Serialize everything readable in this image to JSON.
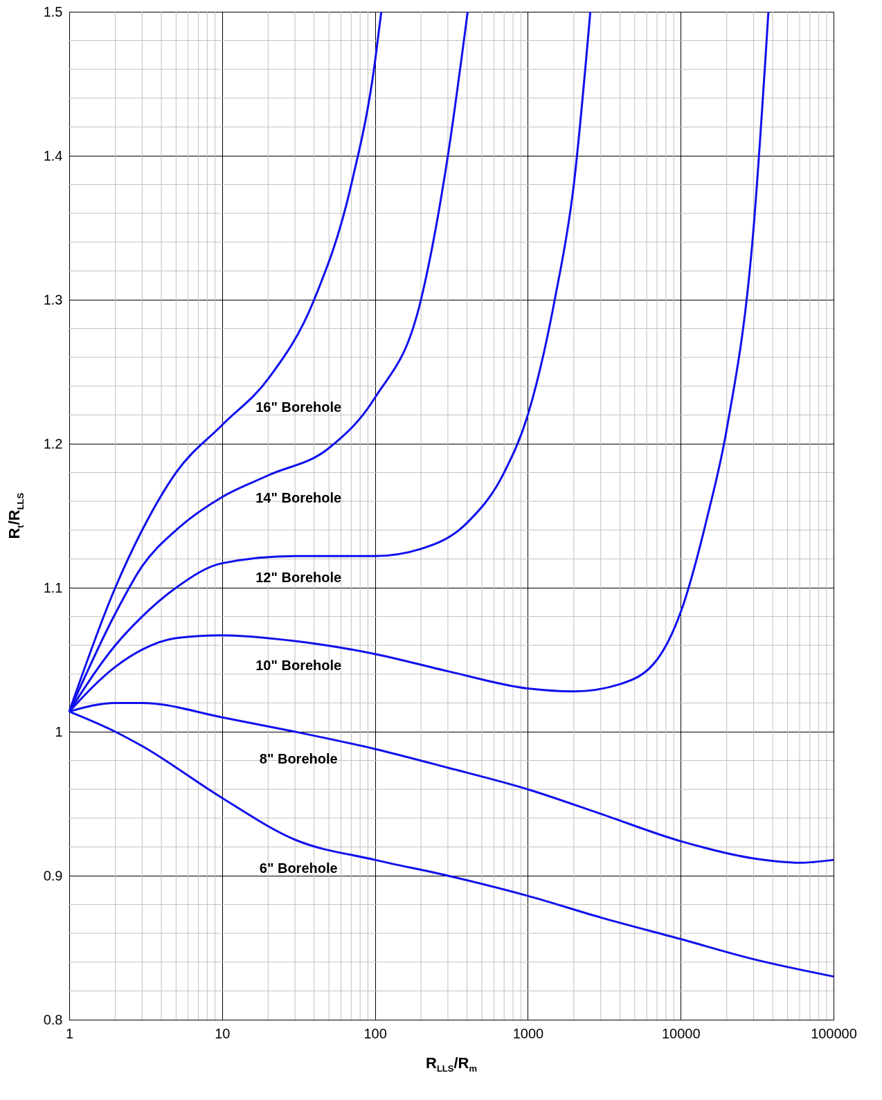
{
  "chart_data": {
    "type": "line",
    "xlabel": "R$_{LLS}$/R$_{m}$",
    "ylabel": "R$_{t}$/R$_{LLS}$",
    "log": "x",
    "grid": true,
    "marker": "none",
    "line_style": "solid",
    "xlim": [
      1,
      100000
    ],
    "xticks": [
      1,
      10,
      100,
      1000,
      10000,
      100000
    ],
    "ylim": [
      0.8,
      1.5
    ],
    "yticks": [
      0.8,
      0.9,
      1,
      1.1,
      1.2,
      1.3,
      1.4,
      1.5
    ],
    "series": [
      {
        "name": "16\" Borehole",
        "color": "#1010ee",
        "x": [
          1,
          2,
          3,
          5,
          10,
          20,
          40,
          70,
          100,
          110
        ],
        "values": [
          1.014,
          1.1,
          1.14,
          1.18,
          1.213,
          1.245,
          1.3,
          1.38,
          1.465,
          1.5
        ]
      },
      {
        "name": "14\" Borehole",
        "color": "#1010ee",
        "x": [
          1,
          2,
          3,
          5,
          10,
          20,
          50,
          100,
          200,
          300,
          404
        ],
        "values": [
          1.014,
          1.082,
          1.115,
          1.14,
          1.163,
          1.178,
          1.197,
          1.232,
          1.3,
          1.4,
          1.5
        ]
      },
      {
        "name": "12\" Borehole",
        "color": "#1010ee",
        "x": [
          1,
          2,
          3,
          5,
          10,
          30,
          100,
          200,
          400,
          700,
          1000,
          1500,
          2000,
          2564
        ],
        "values": [
          1.014,
          1.06,
          1.08,
          1.1,
          1.117,
          1.122,
          1.122,
          1.127,
          1.145,
          1.18,
          1.22,
          1.3,
          1.38,
          1.5
        ]
      },
      {
        "name": "10\" Borehole",
        "color": "#1010ee",
        "x": [
          1,
          2,
          3,
          5,
          10,
          30,
          100,
          300,
          1000,
          2000,
          4000,
          7000,
          10000,
          15000,
          20000,
          30000,
          37500
        ],
        "values": [
          1.014,
          1.045,
          1.057,
          1.065,
          1.067,
          1.063,
          1.054,
          1.042,
          1.03,
          1.028,
          1.033,
          1.05,
          1.083,
          1.15,
          1.21,
          1.35,
          1.5
        ]
      },
      {
        "name": "8\" Borehole",
        "color": "#1010ee",
        "x": [
          1,
          2,
          3,
          10,
          30,
          100,
          300,
          1000,
          3000,
          10000,
          30000,
          60000,
          100000
        ],
        "values": [
          1.014,
          1.02,
          1.02,
          1.01,
          1.0,
          0.988,
          0.975,
          0.96,
          0.943,
          0.924,
          0.912,
          0.909,
          0.911
        ]
      },
      {
        "name": "6\" Borehole",
        "color": "#1010ee",
        "x": [
          1,
          2,
          3,
          10,
          30,
          100,
          300,
          1000,
          3000,
          10000,
          30000,
          100000
        ],
        "values": [
          1.014,
          1.0,
          0.99,
          0.954,
          0.925,
          0.911,
          0.9,
          0.886,
          0.871,
          0.856,
          0.842,
          0.83
        ]
      }
    ]
  }
}
